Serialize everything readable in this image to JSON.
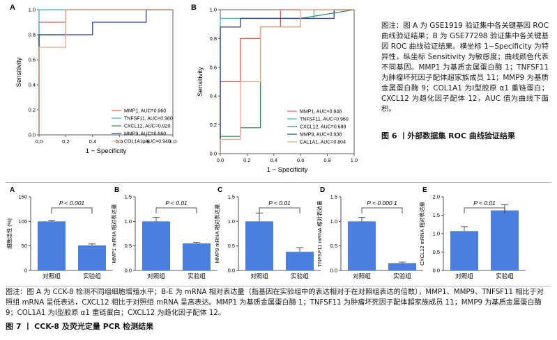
{
  "roc_a": {
    "panel": "A",
    "xlabel": "1 − Specificity",
    "ylabel": "Sensitivity",
    "xticks": [
      "0.0",
      "0.2",
      "0.4",
      "0.6",
      "0.8",
      "1.0"
    ],
    "yticks": [
      "0.0",
      "0.2",
      "0.4",
      "0.6",
      "0.8",
      "1.0"
    ],
    "legend": [
      {
        "label": "MMP1, AUC=0.960",
        "color": "#e05a4a"
      },
      {
        "label": "TNFSF11, AUC=0.980",
        "color": "#3fb8b0"
      },
      {
        "label": "CXCL12, AUC=0.920",
        "color": "#2e8b57"
      },
      {
        "label": "MMP9, AUC=0.860",
        "color": "#2b3f8f"
      },
      {
        "label": "COL1A1, AUC=0.940",
        "color": "#f0a58c"
      }
    ]
  },
  "roc_b": {
    "panel": "B",
    "xlabel": "1 − Specificity",
    "ylabel": "Sensitivity",
    "xticks": [
      "0.0",
      "0.2",
      "0.4",
      "0.6",
      "0.8",
      "1.0"
    ],
    "yticks": [
      "0.0",
      "0.2",
      "0.4",
      "0.6",
      "0.8",
      "1.0"
    ],
    "legend": [
      {
        "label": "MMP1, AUC=0.848",
        "color": "#e05a4a"
      },
      {
        "label": "TNFSF11, AUC=0.960",
        "color": "#3fb8b0"
      },
      {
        "label": "CXCL12, AUC=0.688",
        "color": "#2e8b57"
      },
      {
        "label": "MMP9, AUC=0.938",
        "color": "#2b3f8f"
      },
      {
        "label": "CAL1A1, AUC=0.804",
        "color": "#f0a58c"
      }
    ]
  },
  "side_note": "图注：图 A 为 GSE1919 验证集中各关键基因 ROC 曲线验证结果；B 为 GSE77298 验证集中各关键基因 ROC 曲线验证结果。横坐标 1−Specificity 为特异性，纵坐标 Sensitivity 为敏感度；曲线颜色代表不同基因。MMP1 为基质金属蛋白酶 1；TNFSF11 为肿瘤坏死因子配体超家族成员 11；MMP9 为基质金属蛋白酶 9；COL1A1 为Ⅰ型胶原 α1 重链蛋白；CXCL12 为趋化因子配体 12，AUC 值为曲线下面积。",
  "fig6_title": "图 6 丨外部数据集 ROC 曲线验证结果",
  "bottom_note": "图注：图 A 为 CCK-8 检测不同组细胞增殖水平；B-E 为 mRNA 相对表达量（指基因在实验组中的表达相对于在对照组表达的倍数），MMP1、MMP9、TNFSF11 相比于对照组 mRNA 呈低表达，CXCL12 相比于对照组 mRNA 呈高表达。MMP1 为基质金属蛋白酶 1；TNFSF11 为肿瘤坏死因子配体超家族成员 11；MMP9 为基质金属蛋白酶 9；COL1A1 为Ⅰ型胶原 α1 重链蛋白；CXCL12 为趋化因子配体 12。",
  "fig7_title": "图 7 丨 CCK-8 及荧光定量 PCR 检测结果",
  "chart_data": [
    {
      "type": "line",
      "panel": "A",
      "xlabel": "1 − Specificity",
      "ylabel": "Sensitivity",
      "xlim": [
        0,
        1
      ],
      "ylim": [
        0,
        1
      ],
      "series": [
        {
          "name": "MMP1, AUC=0.960",
          "x": [
            0,
            0,
            0.2,
            0.2,
            1
          ],
          "y": [
            0,
            0.9,
            0.9,
            1,
            1
          ]
        },
        {
          "name": "TNFSF11, AUC=0.980",
          "x": [
            0,
            0,
            0.2,
            1
          ],
          "y": [
            0,
            1,
            1,
            1
          ]
        },
        {
          "name": "CXCL12, AUC=0.920",
          "x": [
            0,
            0,
            0.2,
            0.2,
            1
          ],
          "y": [
            0,
            0.8,
            0.8,
            1,
            1
          ]
        },
        {
          "name": "MMP9, AUC=0.860",
          "x": [
            0,
            0,
            0.4,
            0.4,
            0.8,
            0.8,
            1
          ],
          "y": [
            0,
            0.8,
            0.8,
            0.9,
            0.9,
            1,
            1
          ]
        },
        {
          "name": "COL1A1, AUC=0.940",
          "x": [
            0,
            0,
            0.2,
            0.2,
            1
          ],
          "y": [
            0,
            0.7,
            0.7,
            1,
            1
          ]
        }
      ]
    },
    {
      "type": "line",
      "panel": "B",
      "xlabel": "1 − Specificity",
      "ylabel": "Sensitivity",
      "xlim": [
        0,
        1
      ],
      "ylim": [
        0,
        1
      ],
      "series": [
        {
          "name": "MMP1, AUC=0.848",
          "x": [
            0,
            0,
            0.15,
            0.15,
            0.3,
            0.3,
            0.45,
            0.45,
            1
          ],
          "y": [
            0,
            0.5,
            0.5,
            0.8,
            0.8,
            0.88,
            0.88,
            1,
            1
          ]
        },
        {
          "name": "TNFSF11, AUC=0.960",
          "x": [
            0,
            0,
            0.7,
            0.7,
            1
          ],
          "y": [
            0,
            0.94,
            0.94,
            1,
            1
          ]
        },
        {
          "name": "CXCL12, AUC=0.688",
          "x": [
            0,
            0,
            0.15,
            0.15,
            0.3,
            0.3,
            0.6,
            0.6,
            1
          ],
          "y": [
            0,
            0.12,
            0.12,
            0.18,
            0.18,
            0.88,
            0.88,
            0.94,
            1
          ]
        },
        {
          "name": "MMP9, AUC=0.938",
          "x": [
            0,
            0,
            0.15,
            0.15,
            0.85,
            0.85,
            1
          ],
          "y": [
            0,
            0.88,
            0.88,
            0.94,
            0.94,
            1,
            1
          ]
        },
        {
          "name": "CAL1A1, AUC=0.804",
          "x": [
            0,
            0,
            0.15,
            0.15,
            0.3,
            0.3,
            0.6,
            0.6,
            1
          ],
          "y": [
            0,
            0.1,
            0.1,
            0.5,
            0.5,
            0.88,
            0.88,
            1,
            1
          ]
        }
      ]
    },
    {
      "type": "bar",
      "panel": "A",
      "ylabel": "细胞活性 (%)",
      "ylim": [
        0,
        150
      ],
      "yticks": [
        "0",
        "50",
        "100",
        "150"
      ],
      "categories": [
        "对照组",
        "实验组"
      ],
      "values": [
        100,
        51
      ],
      "errors": [
        1.5,
        3
      ],
      "annotation": "P < 0.001"
    },
    {
      "type": "bar",
      "panel": "B",
      "ylabel": "MMP1 mRNA 相对表达量",
      "ylim": [
        0,
        1.5
      ],
      "yticks": [
        "0.0",
        "0.5",
        "1.0",
        "1.5"
      ],
      "categories": [
        "对照组",
        "实验组"
      ],
      "values": [
        1.0,
        0.55
      ],
      "errors": [
        0.08,
        0.02
      ],
      "annotation": "P < 0.01"
    },
    {
      "type": "bar",
      "panel": "C",
      "ylabel": "MMP9 mRNA 相对表达量",
      "ylim": [
        0,
        1.5
      ],
      "yticks": [
        "0.0",
        "0.5",
        "1.0",
        "1.5"
      ],
      "categories": [
        "对照组",
        "实验组"
      ],
      "values": [
        1.0,
        0.38
      ],
      "errors": [
        0.17,
        0.08
      ],
      "annotation": "P < 0.01"
    },
    {
      "type": "bar",
      "panel": "D",
      "ylabel": "TNFSF11 mRNA 相对表达量",
      "ylim": [
        0,
        1.5
      ],
      "yticks": [
        "0.0",
        "0.5",
        "1.0",
        "1.5"
      ],
      "categories": [
        "对照组",
        "实验组"
      ],
      "values": [
        1.0,
        0.15
      ],
      "errors": [
        0.08,
        0.02
      ],
      "annotation": "P < 0.000 1"
    },
    {
      "type": "bar",
      "panel": "E",
      "ylabel": "CXCL12 mRNA 相对表达量",
      "ylim": [
        0,
        2.0
      ],
      "yticks": [
        "0.0",
        "0.5",
        "1.0",
        "1.5",
        "2.0"
      ],
      "categories": [
        "对照组",
        "实验组"
      ],
      "values": [
        1.07,
        1.63
      ],
      "errors": [
        0.12,
        0.15
      ],
      "annotation": "P < 0.01"
    }
  ]
}
